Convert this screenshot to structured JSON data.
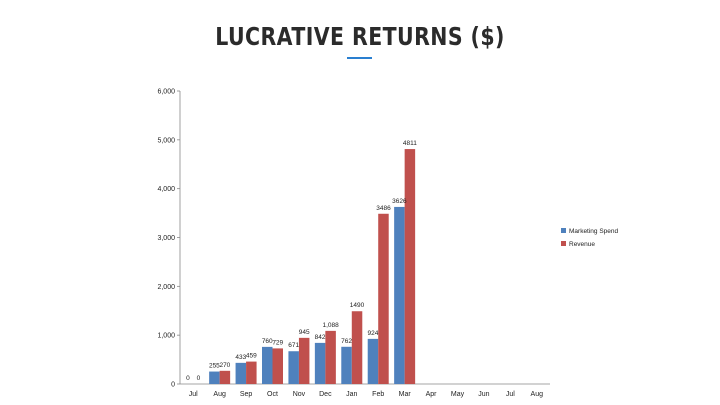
{
  "title": "LUCRATIVE RETURNS ($)",
  "colors": {
    "accent": "#2a7fd0",
    "marketing": "#4f81bd",
    "revenue": "#c0504d"
  },
  "chart_data": {
    "type": "bar",
    "categories": [
      "Jul",
      "Aug",
      "Sep",
      "Oct",
      "Nov",
      "Dec",
      "Jan",
      "Feb",
      "Mar",
      "Apr",
      "May",
      "Jun",
      "Jul",
      "Aug"
    ],
    "series": [
      {
        "name": "Marketing Spend",
        "values": [
          0,
          255,
          433,
          760,
          671,
          842,
          762,
          924,
          3626,
          null,
          null,
          null,
          null,
          null
        ],
        "labels": [
          "0",
          "255",
          "433",
          "760",
          "671",
          "842",
          "762",
          "924",
          "3626",
          "",
          "",
          "",
          "",
          ""
        ]
      },
      {
        "name": "Revenue",
        "values": [
          0,
          270,
          459,
          729,
          945,
          1088,
          1490,
          3486,
          4811,
          null,
          null,
          null,
          null,
          null
        ],
        "labels": [
          "0",
          "270",
          "459",
          "729",
          "945",
          "1,088",
          "1490",
          "3486",
          "4811",
          "",
          "",
          "",
          "",
          ""
        ]
      }
    ],
    "ylim": [
      0,
      6000
    ],
    "yticks": [
      "0",
      "1,000",
      "2,000",
      "3,000",
      "4,000",
      "5,000",
      "6,000"
    ],
    "legend_position": "right",
    "grid": false
  }
}
